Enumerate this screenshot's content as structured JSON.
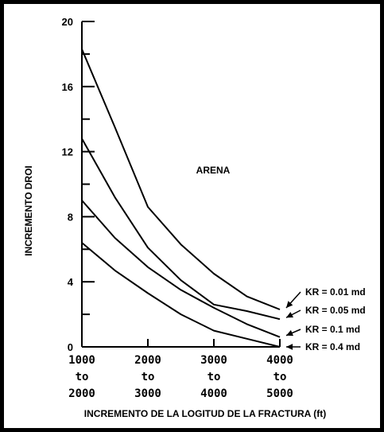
{
  "chart_data": {
    "type": "line",
    "title": "",
    "xlabel": "INCREMENTO DE LA LOGITUD DE LA FRACTURA (ft)",
    "ylabel": "INCREMENTO DROI",
    "annotation": "ARENA",
    "ylim": [
      0,
      20
    ],
    "yticks": [
      "0",
      "4",
      "8",
      "12",
      "16",
      "20"
    ],
    "xlim": [
      1000,
      4000
    ],
    "xticks": [
      {
        "value": 1000,
        "lines": [
          "1000",
          "to",
          "2000"
        ]
      },
      {
        "value": 2000,
        "lines": [
          "2000",
          "to",
          "3000"
        ]
      },
      {
        "value": 3000,
        "lines": [
          "3000",
          "to",
          "4000"
        ]
      },
      {
        "value": 4000,
        "lines": [
          "4000",
          "to",
          "5000"
        ]
      }
    ],
    "grid": false,
    "series": [
      {
        "name": "KR = 0.01 md",
        "x": [
          1000,
          1500,
          2000,
          2500,
          3000,
          3500,
          4000
        ],
        "y": [
          18.3,
          13.5,
          8.6,
          6.3,
          4.5,
          3.1,
          2.3
        ]
      },
      {
        "name": "KR = 0.05 md",
        "x": [
          1000,
          1500,
          2000,
          2500,
          3000,
          3500,
          4000
        ],
        "y": [
          12.8,
          9.2,
          6.1,
          4.1,
          2.6,
          2.2,
          1.7
        ]
      },
      {
        "name": "KR = 0.1 md",
        "x": [
          1000,
          1500,
          2000,
          2500,
          3000,
          3500,
          4000
        ],
        "y": [
          9.0,
          6.7,
          4.9,
          3.5,
          2.4,
          1.4,
          0.6
        ]
      },
      {
        "name": "KR = 0.4 md",
        "x": [
          1000,
          1500,
          2000,
          2500,
          3000,
          3500,
          4000
        ],
        "y": [
          6.4,
          4.7,
          3.3,
          2.0,
          1.0,
          0.5,
          0.0
        ]
      }
    ]
  }
}
